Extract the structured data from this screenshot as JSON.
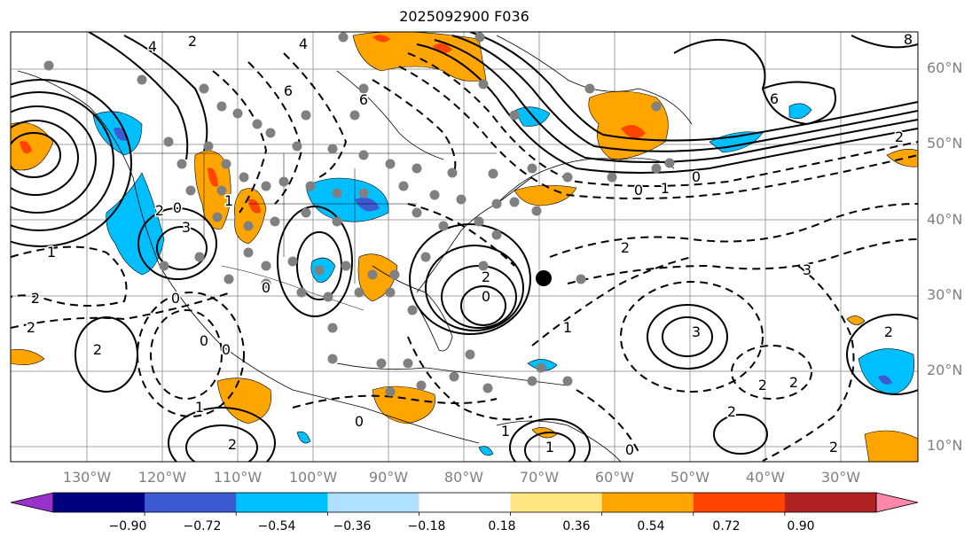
{
  "title": "2025092900 F036",
  "map": {
    "lat_labels": [
      "60°N",
      "50°N",
      "40°N",
      "30°N",
      "20°N",
      "10°N"
    ],
    "lon_labels": [
      "130°W",
      "120°W",
      "110°W",
      "100°W",
      "90°W",
      "80°W",
      "70°W",
      "60°W",
      "50°W",
      "40°W",
      "30°W"
    ],
    "contour_labels": [
      "4",
      "2",
      "4",
      "6",
      "6",
      "8",
      "1",
      "2",
      "3",
      "2",
      "1",
      "0",
      "6",
      "2",
      "0",
      "1",
      "0",
      "2",
      "2",
      "0",
      "0",
      "2",
      "2",
      "3",
      "3",
      "2",
      "2",
      "1",
      "2",
      "1",
      "1",
      "0",
      "2",
      "2",
      "0",
      "0",
      "0",
      "0",
      "1",
      "2"
    ],
    "marker": "storm-center-dot",
    "colors": {
      "positive_orange": "#ffa500",
      "positive_redorange": "#ff4500",
      "positive_red": "#e00000",
      "negative_lightblue": "#00bfff",
      "negative_blue": "#3c5ad2"
    }
  },
  "colorbar": {
    "ticks": [
      "−0.90",
      "−0.72",
      "−0.54",
      "−0.36",
      "−0.18",
      "0.18",
      "0.36",
      "0.54",
      "0.72",
      "0.90"
    ],
    "colors": [
      "#9932cc",
      "#000080",
      "#3c5ad2",
      "#00bfff",
      "#b0e0ff",
      "#ffffff",
      "#ffe680",
      "#ffa500",
      "#ff4500",
      "#b22222",
      "#ff88aa"
    ]
  }
}
